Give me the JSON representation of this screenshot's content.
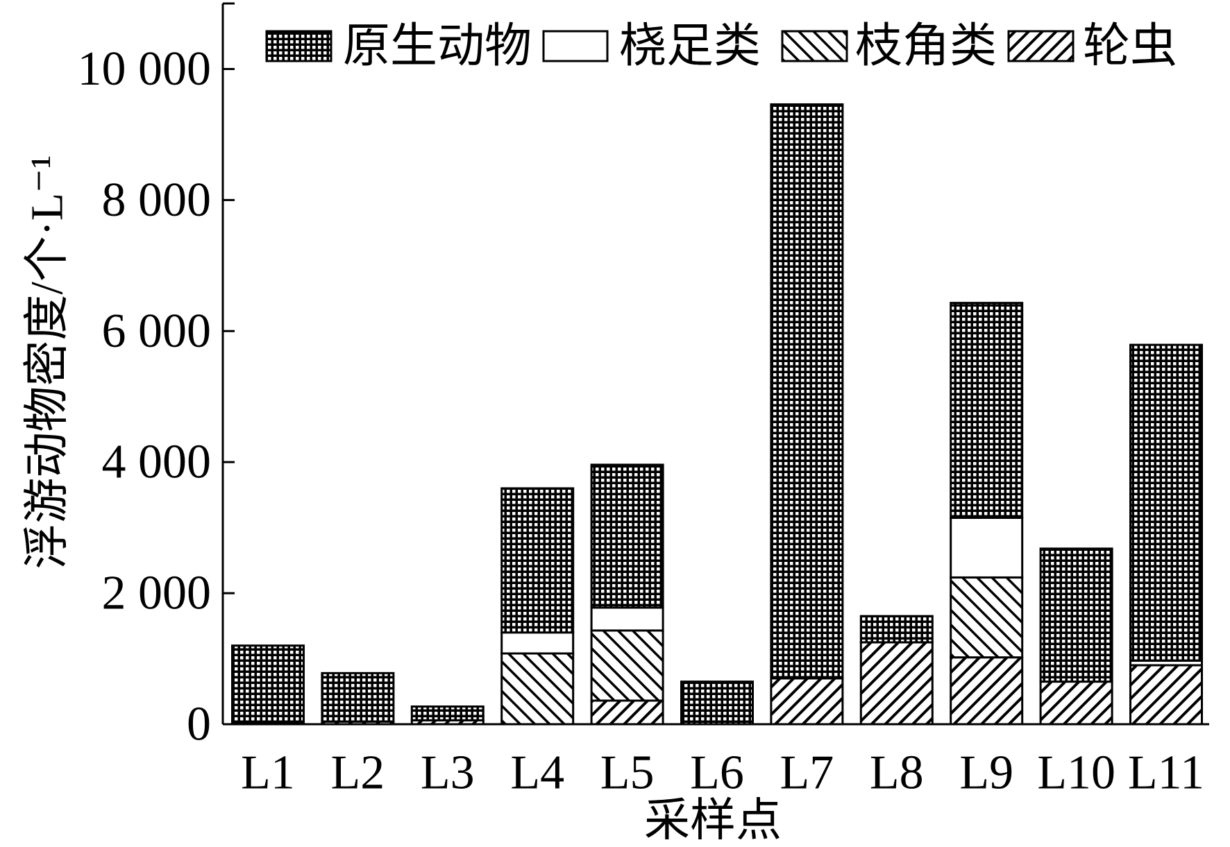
{
  "chart_data": {
    "type": "bar",
    "stacked": true,
    "categories": [
      "L1",
      "L2",
      "L3",
      "L4",
      "L5",
      "L6",
      "L7",
      "L8",
      "L9",
      "L10",
      "L11"
    ],
    "series": [
      {
        "name": "原生动物",
        "pattern": "grid",
        "values": [
          1180,
          740,
          210,
          2200,
          2180,
          650,
          8760,
          400,
          3280,
          2030,
          4820
        ]
      },
      {
        "name": "桡足类",
        "pattern": "solid-white",
        "values": [
          0,
          0,
          0,
          320,
          350,
          0,
          0,
          0,
          910,
          0,
          70
        ]
      },
      {
        "name": "枝角类",
        "pattern": "backslash-hatch",
        "values": [
          0,
          0,
          0,
          1080,
          1070,
          0,
          0,
          0,
          1220,
          0,
          0
        ]
      },
      {
        "name": "轮虫",
        "pattern": "slash-hatch",
        "values": [
          20,
          40,
          60,
          0,
          360,
          0,
          700,
          1250,
          1020,
          650,
          900
        ]
      }
    ],
    "xlabel": "采样点",
    "ylabel": "浮游动物密度/个·L⁻¹",
    "ylim": [
      0,
      11000
    ],
    "yticks": [
      0,
      2000,
      4000,
      6000,
      8000,
      10000
    ],
    "ytick_labels": [
      "0",
      "2 000",
      "4 000",
      "6 000",
      "8 000",
      "10 000"
    ],
    "legend": "top",
    "grid": false
  }
}
